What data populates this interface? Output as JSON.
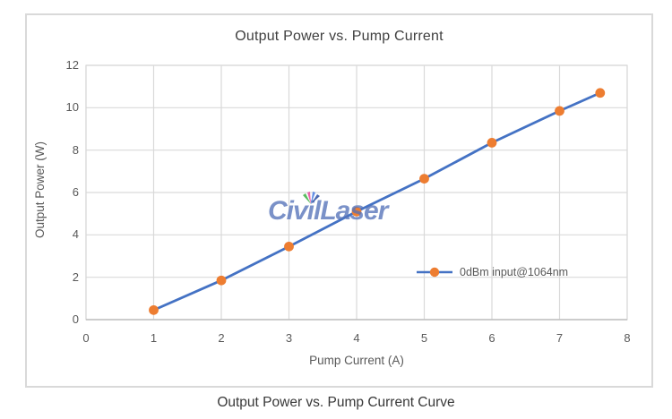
{
  "page": {
    "caption": "Output Power vs. Pump Current Curve"
  },
  "watermark": {
    "text": "CivilLaser"
  },
  "chart_data": {
    "type": "line",
    "title": "Output Power vs. Pump Current",
    "xlabel": "Pump Current (A)",
    "ylabel": "Output Power (W)",
    "xlim": [
      0,
      8
    ],
    "ylim": [
      0,
      12
    ],
    "x_ticks": [
      0,
      1,
      2,
      3,
      4,
      5,
      6,
      7,
      8
    ],
    "y_ticks": [
      0,
      2,
      4,
      6,
      8,
      10,
      12
    ],
    "grid": true,
    "legend_position": "inside-lower-right",
    "series": [
      {
        "name": "0dBm input@1064nm",
        "x": [
          1,
          2,
          3,
          4,
          5,
          6,
          7,
          7.6
        ],
        "y": [
          0.45,
          1.85,
          3.45,
          5.1,
          6.65,
          8.35,
          9.85,
          10.7
        ],
        "line_color": "#4472C4",
        "marker_color": "#ED7D31",
        "marker": "circle"
      }
    ],
    "colors": {
      "gridline": "#D9D9D9",
      "plot_border": "#D9D9D9",
      "axis_line": "#BFBFBF",
      "tick_text": "#595959",
      "title_text": "#3F3F3F",
      "watermark_blue": "#5572B9"
    }
  }
}
